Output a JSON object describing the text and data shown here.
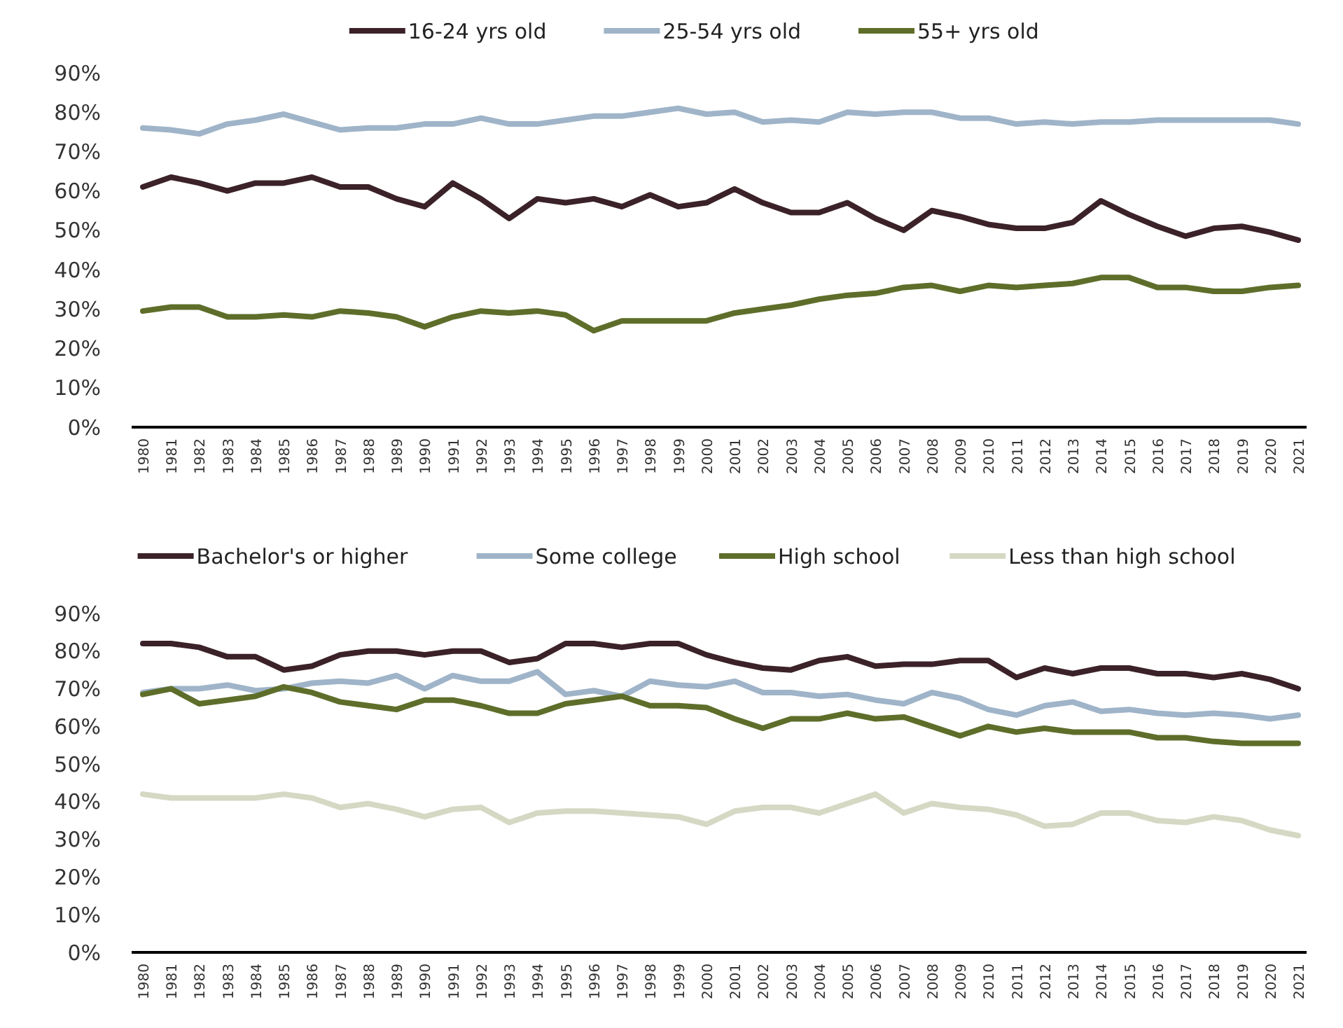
{
  "chart_data": [
    {
      "type": "line",
      "categories": [
        "1980",
        "1981",
        "1982",
        "1983",
        "1984",
        "1985",
        "1986",
        "1987",
        "1988",
        "1989",
        "1990",
        "1991",
        "1992",
        "1993",
        "1994",
        "1995",
        "1996",
        "1997",
        "1998",
        "1999",
        "2000",
        "2001",
        "2002",
        "2003",
        "2004",
        "2005",
        "2006",
        "2007",
        "2008",
        "2009",
        "2010",
        "2011",
        "2012",
        "2013",
        "2014",
        "2015",
        "2016",
        "2017",
        "2018",
        "2019",
        "2020",
        "2021"
      ],
      "ylim": [
        0,
        90
      ],
      "yticks": [
        {
          "value": 0,
          "label": "0%"
        },
        {
          "value": 10,
          "label": "10%"
        },
        {
          "value": 20,
          "label": "20%"
        },
        {
          "value": 30,
          "label": "30%"
        },
        {
          "value": 40,
          "label": "40%"
        },
        {
          "value": 50,
          "label": "50%"
        },
        {
          "value": 60,
          "label": "60%"
        },
        {
          "value": 70,
          "label": "70%"
        },
        {
          "value": 80,
          "label": "80%"
        },
        {
          "value": 90,
          "label": "90%"
        }
      ],
      "grid": false,
      "legend": "top",
      "marker": "none",
      "line_style": "solid",
      "series": [
        {
          "name": "16-24 yrs old",
          "color": "#3b2228",
          "values": [
            61,
            63.5,
            62,
            60,
            62,
            62,
            63.5,
            61,
            61,
            58,
            56,
            62,
            58,
            53,
            58,
            57,
            58,
            56,
            59,
            56,
            57,
            60.5,
            57,
            54.5,
            54.5,
            57,
            53,
            50,
            55,
            53.5,
            51.5,
            50.5,
            50.5,
            52,
            57.5,
            54,
            51,
            48.5,
            50.5,
            51,
            49.5,
            47.5
          ]
        },
        {
          "name": "25-54 yrs old",
          "color": "#9fb4c8",
          "values": [
            76,
            75.5,
            74.5,
            77,
            78,
            79.5,
            77.5,
            75.5,
            76,
            76,
            77,
            77,
            78.5,
            77,
            77,
            78,
            79,
            79,
            80,
            81,
            79.5,
            80,
            77.5,
            78,
            77.5,
            80,
            79.5,
            80,
            80,
            78.5,
            78.5,
            77,
            77.5,
            77,
            77.5,
            77.5,
            78,
            78,
            78,
            78,
            78,
            77
          ]
        },
        {
          "name": "55+ yrs old",
          "color": "#5e6e2a",
          "values": [
            29.5,
            30.5,
            30.5,
            28,
            28,
            28.5,
            28,
            29.5,
            29,
            28,
            25.5,
            28,
            29.5,
            29,
            29.5,
            28.5,
            24.5,
            27,
            27,
            27,
            27,
            29,
            30,
            31,
            32.5,
            33.5,
            34,
            35.5,
            36,
            34.5,
            36,
            35.5,
            36,
            36.5,
            38,
            38,
            35.5,
            35.5,
            34.5,
            34.5,
            35.5,
            36
          ]
        }
      ]
    },
    {
      "type": "line",
      "categories": [
        "1980",
        "1981",
        "1982",
        "1983",
        "1984",
        "1985",
        "1986",
        "1987",
        "1988",
        "1989",
        "1990",
        "1991",
        "1992",
        "1993",
        "1994",
        "1995",
        "1996",
        "1997",
        "1998",
        "1999",
        "2000",
        "2001",
        "2002",
        "2003",
        "2004",
        "2005",
        "2006",
        "2007",
        "2008",
        "2009",
        "2010",
        "2011",
        "2012",
        "2013",
        "2014",
        "2015",
        "2016",
        "2017",
        "2018",
        "2019",
        "2020",
        "2021"
      ],
      "ylim": [
        0,
        90
      ],
      "yticks": [
        {
          "value": 0,
          "label": "0%"
        },
        {
          "value": 10,
          "label": "10%"
        },
        {
          "value": 20,
          "label": "20%"
        },
        {
          "value": 30,
          "label": "30%"
        },
        {
          "value": 40,
          "label": "40%"
        },
        {
          "value": 50,
          "label": "50%"
        },
        {
          "value": 60,
          "label": "60%"
        },
        {
          "value": 70,
          "label": "70%"
        },
        {
          "value": 80,
          "label": "80%"
        },
        {
          "value": 90,
          "label": "90%"
        }
      ],
      "grid": false,
      "legend": "top",
      "marker": "none",
      "line_style": "solid",
      "series": [
        {
          "name": "Bachelor's or higher",
          "color": "#3b2228",
          "values": [
            82,
            82,
            81,
            78.5,
            78.5,
            75,
            76,
            79,
            80,
            80,
            79,
            80,
            80,
            77,
            78,
            82,
            82,
            81,
            82,
            82,
            79,
            77,
            75.5,
            75,
            77.5,
            78.5,
            76,
            76.5,
            76.5,
            77.5,
            77.5,
            73,
            75.5,
            74,
            75.5,
            75.5,
            74,
            74,
            73,
            74,
            72.5,
            70
          ]
        },
        {
          "name": "Some college",
          "color": "#9fb4c8",
          "values": [
            69,
            70,
            70,
            71,
            69.5,
            70,
            71.5,
            72,
            71.5,
            73.5,
            70,
            73.5,
            72,
            72,
            74.5,
            68.5,
            69.5,
            68,
            72,
            71,
            70.5,
            72,
            69,
            69,
            68,
            68.5,
            67,
            66,
            69,
            67.5,
            64.5,
            63,
            65.5,
            66.5,
            64,
            64.5,
            63.5,
            63,
            63.5,
            63,
            62,
            63
          ]
        },
        {
          "name": "High school",
          "color": "#5e6e2a",
          "values": [
            68.5,
            70,
            66,
            67,
            68,
            70.5,
            69,
            66.5,
            65.5,
            64.5,
            67,
            67,
            65.5,
            63.5,
            63.5,
            66,
            67,
            68,
            65.5,
            65.5,
            65,
            62,
            59.5,
            62,
            62,
            63.5,
            62,
            62.5,
            60,
            57.5,
            60,
            58.5,
            59.5,
            58.5,
            58.5,
            58.5,
            57,
            57,
            56,
            55.5,
            55.5,
            55.5
          ]
        },
        {
          "name": "Less than high school",
          "color": "#d5d9c4",
          "values": [
            42,
            41,
            41,
            41,
            41,
            42,
            41,
            38.5,
            39.5,
            38,
            36,
            38,
            38.5,
            34.5,
            37,
            37.5,
            37.5,
            37,
            36.5,
            36,
            34,
            37.5,
            38.5,
            38.5,
            37,
            39.5,
            42,
            37,
            39.5,
            38.5,
            38,
            36.5,
            33.5,
            34,
            37,
            37,
            35,
            34.5,
            36,
            35,
            32.5,
            31
          ]
        }
      ]
    }
  ]
}
